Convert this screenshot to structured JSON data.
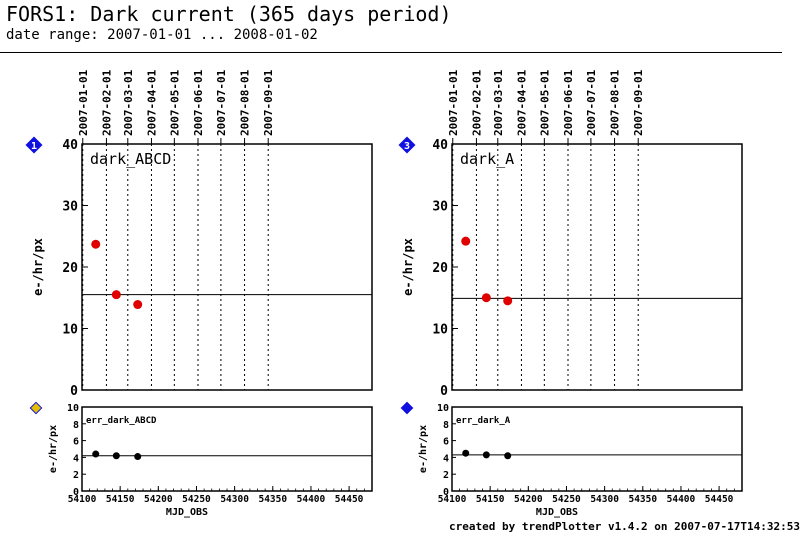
{
  "header": {
    "title": "FORS1: Dark current (365 days period)",
    "subtitle": "date range: 2007-01-01 ... 2008-01-02"
  },
  "footer": {
    "credit": "created by trendPlotter v1.4.2 on 2007-07-17T14:32:53"
  },
  "colors": {
    "data_points": "#e00000",
    "error_points": "#000000",
    "marker_blue": "#1010e0",
    "marker_yellow": "#e0c000"
  },
  "chart_data": [
    {
      "type": "scatter",
      "panel_badge": "1",
      "label": "dark_ABCD",
      "ylabel": "e-/hr/px",
      "ylim": [
        0,
        40
      ],
      "yticks": [
        0,
        10,
        20,
        30,
        40
      ],
      "xlim": [
        54100,
        54480
      ],
      "date_ticks": [
        {
          "label": "2007-01-01",
          "mjd": 54101
        },
        {
          "label": "2007-02-01",
          "mjd": 54132
        },
        {
          "label": "2007-03-01",
          "mjd": 54160
        },
        {
          "label": "2007-04-01",
          "mjd": 54191
        },
        {
          "label": "2007-05-01",
          "mjd": 54221
        },
        {
          "label": "2007-06-01",
          "mjd": 54252
        },
        {
          "label": "2007-07-01",
          "mjd": 54282
        },
        {
          "label": "2007-08-01",
          "mjd": 54313
        },
        {
          "label": "2007-09-01",
          "mjd": 54344
        }
      ],
      "points": [
        {
          "x": 54118,
          "y": 23.7
        },
        {
          "x": 54145,
          "y": 15.5
        },
        {
          "x": 54173,
          "y": 13.9
        }
      ],
      "reference_line": 15.5,
      "grid": "vertical dotted at month starts"
    },
    {
      "type": "scatter",
      "label": "err_dark_ABCD",
      "ylabel": "e-/hr/px",
      "xlabel": "MJD_OBS",
      "ylim": [
        0,
        10
      ],
      "yticks": [
        0,
        2,
        4,
        6,
        8,
        10
      ],
      "xlim": [
        54100,
        54480
      ],
      "xticks": [
        54100,
        54150,
        54200,
        54250,
        54300,
        54350,
        54400,
        54450
      ],
      "points": [
        {
          "x": 54118,
          "y": 4.4
        },
        {
          "x": 54145,
          "y": 4.2
        },
        {
          "x": 54173,
          "y": 4.1
        }
      ],
      "reference_line": 4.2
    },
    {
      "type": "scatter",
      "panel_badge": "3",
      "label": "dark_A",
      "ylabel": "e-/hr/px",
      "ylim": [
        0,
        40
      ],
      "yticks": [
        0,
        10,
        20,
        30,
        40
      ],
      "xlim": [
        54100,
        54480
      ],
      "date_ticks": [
        {
          "label": "2007-01-01",
          "mjd": 54101
        },
        {
          "label": "2007-02-01",
          "mjd": 54132
        },
        {
          "label": "2007-03-01",
          "mjd": 54160
        },
        {
          "label": "2007-04-01",
          "mjd": 54191
        },
        {
          "label": "2007-05-01",
          "mjd": 54221
        },
        {
          "label": "2007-06-01",
          "mjd": 54252
        },
        {
          "label": "2007-07-01",
          "mjd": 54282
        },
        {
          "label": "2007-08-01",
          "mjd": 54313
        },
        {
          "label": "2007-09-01",
          "mjd": 54344
        }
      ],
      "points": [
        {
          "x": 54118,
          "y": 24.2
        },
        {
          "x": 54145,
          "y": 15.0
        },
        {
          "x": 54173,
          "y": 14.5
        }
      ],
      "reference_line": 14.9,
      "grid": "vertical dotted at month starts"
    },
    {
      "type": "scatter",
      "label": "err_dark_A",
      "ylabel": "e-/hr/px",
      "xlabel": "MJD_OBS",
      "ylim": [
        0,
        10
      ],
      "yticks": [
        0,
        2,
        4,
        6,
        8,
        10
      ],
      "xlim": [
        54100,
        54480
      ],
      "xticks": [
        54100,
        54150,
        54200,
        54250,
        54300,
        54350,
        54400,
        54450
      ],
      "points": [
        {
          "x": 54118,
          "y": 4.5
        },
        {
          "x": 54145,
          "y": 4.3
        },
        {
          "x": 54173,
          "y": 4.2
        }
      ],
      "reference_line": 4.3
    }
  ]
}
